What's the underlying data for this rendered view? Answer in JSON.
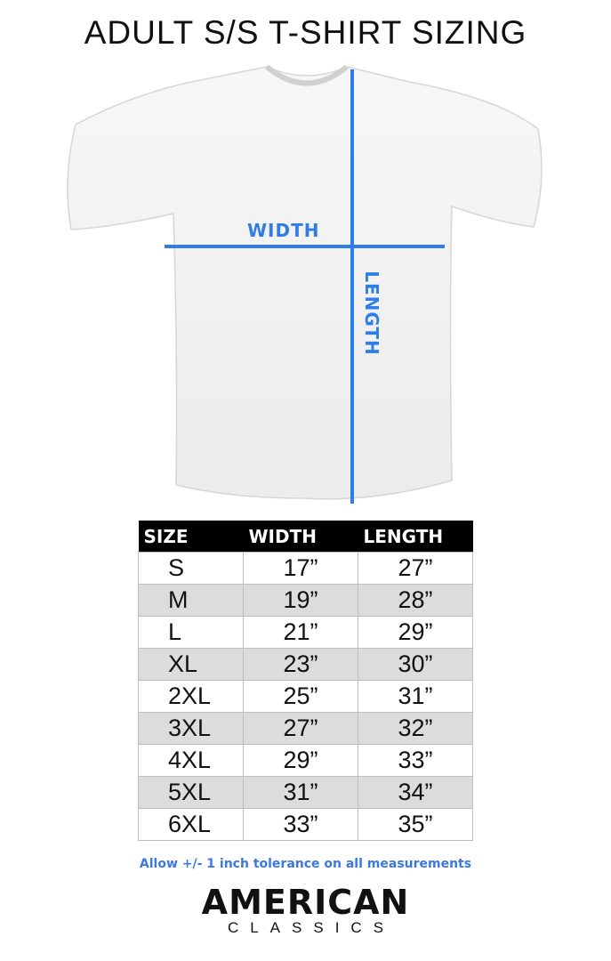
{
  "title": "ADULT S/S T-SHIRT SIZING",
  "diagram": {
    "width_label": "WIDTH",
    "length_label": "LENGTH",
    "line_color": "#2f7de8"
  },
  "table": {
    "headers": [
      "SIZE",
      "WIDTH",
      "LENGTH"
    ],
    "rows": [
      [
        "S",
        "17”",
        "27”"
      ],
      [
        "M",
        "19”",
        "28”"
      ],
      [
        "L",
        "21”",
        "29”"
      ],
      [
        "XL",
        "23”",
        "30”"
      ],
      [
        "2XL",
        "25”",
        "31”"
      ],
      [
        "3XL",
        "27”",
        "32”"
      ],
      [
        "4XL",
        "29”",
        "33”"
      ],
      [
        "5XL",
        "31”",
        "34”"
      ],
      [
        "6XL",
        "33”",
        "35”"
      ]
    ]
  },
  "note": "Allow +/- 1 inch tolerance on all measurements",
  "logo": {
    "line1": "AMERICAN",
    "line2": "CLASSICS"
  }
}
